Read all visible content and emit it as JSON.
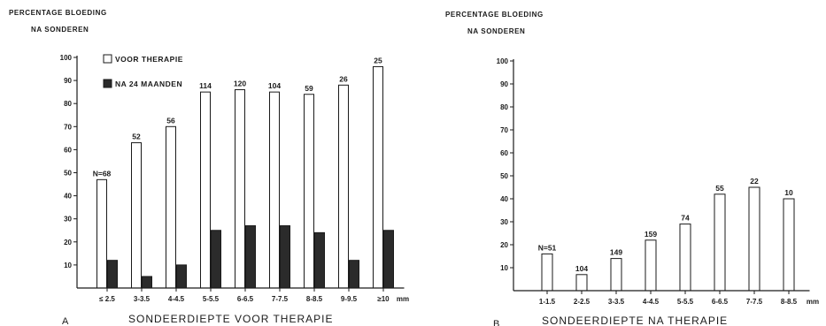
{
  "colors": {
    "ink": "#1a1a1a",
    "before": "#ffffff",
    "after": "#2b2b2b"
  },
  "chart_data": [
    {
      "type": "bar",
      "panel": "A",
      "title": [
        "PERCENTAGE BLOEDING",
        "NA SONDEREN"
      ],
      "xlabel": "SONDEERDIEPTE VOOR THERAPIE",
      "x_unit": "mm",
      "ylim": [
        0,
        100
      ],
      "yticks": [
        10,
        20,
        30,
        40,
        50,
        60,
        70,
        80,
        90,
        100
      ],
      "categories": [
        "≤ 2.5",
        "3-3.5",
        "4-4.5",
        "5-5.5",
        "6-6.5",
        "7-7.5",
        "8-8.5",
        "9-9.5",
        "≥10"
      ],
      "series": [
        {
          "name": "VOOR THERAPIE",
          "values": [
            47,
            63,
            70,
            85,
            86,
            85,
            84,
            88,
            96
          ]
        },
        {
          "name": "NA 24 MAANDEN",
          "values": [
            12,
            5,
            10,
            25,
            27,
            27,
            24,
            12,
            25
          ]
        }
      ],
      "labels": [
        "N=68",
        "52",
        "56",
        "114",
        "120",
        "104",
        "59",
        "26",
        "25"
      ],
      "legend": "top-left",
      "grid": false
    },
    {
      "type": "bar",
      "panel": "B",
      "title": [
        "PERCENTAGE BLOEDING",
        "NA SONDEREN"
      ],
      "xlabel": "SONDEERDIEPTE NA THERAPIE",
      "x_unit": "mm",
      "ylim": [
        0,
        100
      ],
      "yticks": [
        10,
        20,
        30,
        40,
        50,
        60,
        70,
        80,
        90,
        100
      ],
      "categories": [
        "1-1.5",
        "2-2.5",
        "3-3.5",
        "4-4.5",
        "5-5.5",
        "6-6.5",
        "7-7.5",
        "8-8.5"
      ],
      "series": [
        {
          "values": [
            16,
            7,
            14,
            22,
            29,
            42,
            45,
            40
          ]
        }
      ],
      "labels": [
        "N=51",
        "104",
        "149",
        "159",
        "74",
        "55",
        "22",
        "10"
      ],
      "grid": false
    }
  ]
}
